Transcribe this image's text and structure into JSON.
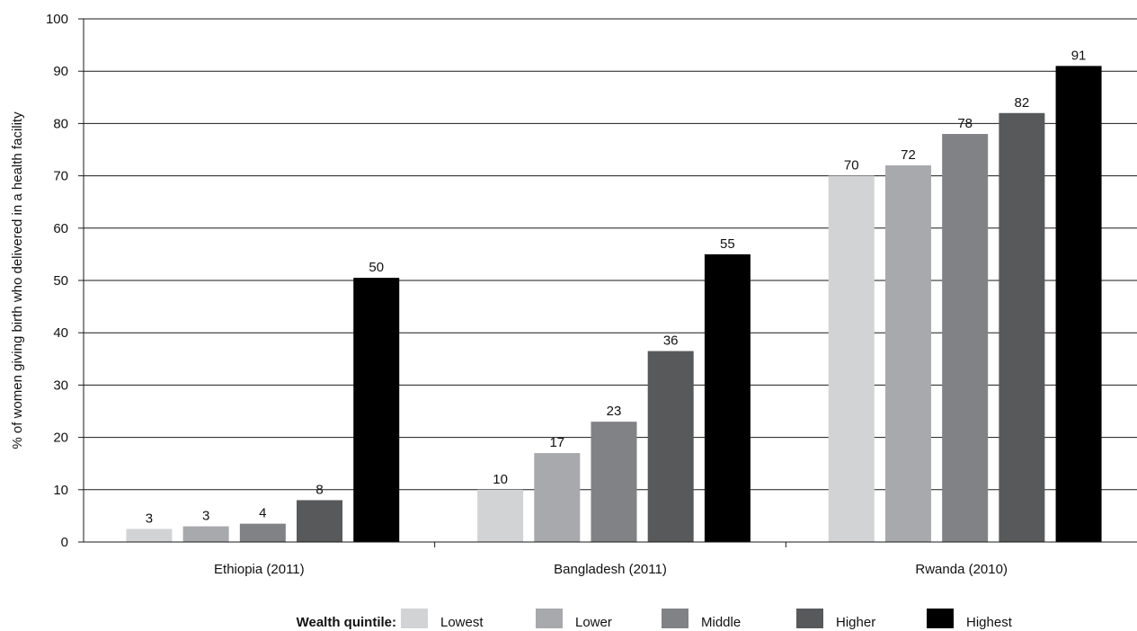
{
  "chart_data": {
    "type": "bar",
    "title": "",
    "xlabel": "",
    "ylabel": "% of women giving birth who delivered in a health facility",
    "ylim": [
      0,
      100
    ],
    "yticks": [
      0,
      10,
      20,
      30,
      40,
      50,
      60,
      70,
      80,
      90,
      100
    ],
    "grid": true,
    "legend_position": "bottom",
    "legend_title": "Wealth quintile:",
    "categories": [
      "Ethiopia (2011)",
      "Bangladesh (2011)",
      "Rwanda (2010)"
    ],
    "series": [
      {
        "name": "Lowest",
        "color": "#d1d3d4",
        "values": [
          2.5,
          10,
          70
        ]
      },
      {
        "name": "Lower",
        "color": "#a7a9ac",
        "values": [
          3,
          17,
          72
        ]
      },
      {
        "name": "Middle",
        "color": "#808285",
        "values": [
          3.5,
          23,
          78
        ]
      },
      {
        "name": "Higher",
        "color": "#58595b",
        "values": [
          8,
          36.5,
          82
        ]
      },
      {
        "name": "Highest",
        "color": "#000000",
        "values": [
          50.5,
          55,
          91
        ]
      }
    ],
    "data_labels": [
      [
        "3",
        "10",
        "70"
      ],
      [
        "3",
        "17",
        "72"
      ],
      [
        "4",
        "23",
        "78"
      ],
      [
        "8",
        "36",
        "82"
      ],
      [
        "50",
        "55",
        "91"
      ]
    ]
  }
}
